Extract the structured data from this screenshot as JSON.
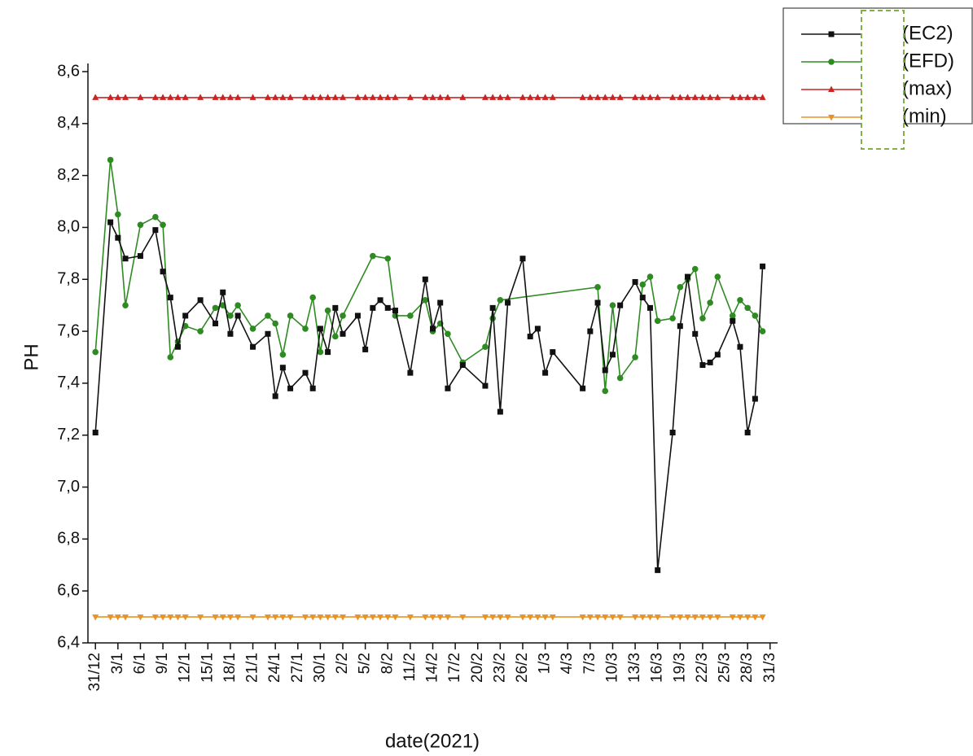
{
  "chart_data": {
    "type": "line",
    "xlabel": "date(2021)",
    "ylabel": "PH",
    "xlim": [
      -1,
      91
    ],
    "ylim": [
      6.4,
      8.6
    ],
    "xticks": [
      {
        "value": 0,
        "label": "31/12"
      },
      {
        "value": 3,
        "label": "3/1"
      },
      {
        "value": 6,
        "label": "6/1"
      },
      {
        "value": 9,
        "label": "9/1"
      },
      {
        "value": 12,
        "label": "12/1"
      },
      {
        "value": 15,
        "label": "15/1"
      },
      {
        "value": 18,
        "label": "18/1"
      },
      {
        "value": 21,
        "label": "21/1"
      },
      {
        "value": 24,
        "label": "24/1"
      },
      {
        "value": 27,
        "label": "27/1"
      },
      {
        "value": 30,
        "label": "30/1"
      },
      {
        "value": 33,
        "label": "2/2"
      },
      {
        "value": 36,
        "label": "5/2"
      },
      {
        "value": 39,
        "label": "8/2"
      },
      {
        "value": 42,
        "label": "11/2"
      },
      {
        "value": 45,
        "label": "14/2"
      },
      {
        "value": 48,
        "label": "17/2"
      },
      {
        "value": 51,
        "label": "20/2"
      },
      {
        "value": 54,
        "label": "23/2"
      },
      {
        "value": 57,
        "label": "26/2"
      },
      {
        "value": 60,
        "label": "1/3"
      },
      {
        "value": 63,
        "label": "4/3"
      },
      {
        "value": 66,
        "label": "7/3"
      },
      {
        "value": 69,
        "label": "10/3"
      },
      {
        "value": 72,
        "label": "13/3"
      },
      {
        "value": 75,
        "label": "16/3"
      },
      {
        "value": 78,
        "label": "19/3"
      },
      {
        "value": 81,
        "label": "22/3"
      },
      {
        "value": 84,
        "label": "25/3"
      },
      {
        "value": 87,
        "label": "28/3"
      },
      {
        "value": 90,
        "label": "31/3"
      }
    ],
    "yticks": [
      {
        "value": 6.4,
        "label": "6,4"
      },
      {
        "value": 6.6,
        "label": "6,6"
      },
      {
        "value": 6.8,
        "label": "6,8"
      },
      {
        "value": 7.0,
        "label": "7,0"
      },
      {
        "value": 7.2,
        "label": "7,2"
      },
      {
        "value": 7.4,
        "label": "7,4"
      },
      {
        "value": 7.6,
        "label": "7,6"
      },
      {
        "value": 7.8,
        "label": "7,8"
      },
      {
        "value": 8.0,
        "label": "8,0"
      },
      {
        "value": 8.2,
        "label": "8,2"
      },
      {
        "value": 8.4,
        "label": "8,4"
      },
      {
        "value": 8.6,
        "label": "8,6"
      }
    ],
    "legend": "upper right",
    "series": [
      {
        "name": "(EC2)",
        "color": "#111111",
        "marker": "square",
        "x": [
          0,
          2,
          3,
          4,
          6,
          8,
          9,
          10,
          11,
          12,
          14,
          16,
          17,
          18,
          19,
          21,
          23,
          24,
          25,
          26,
          28,
          29,
          30,
          31,
          32,
          33,
          35,
          36,
          37,
          38,
          39,
          40,
          42,
          44,
          45,
          46,
          47,
          49,
          52,
          53,
          54,
          55,
          57,
          58,
          59,
          60,
          61,
          65,
          66,
          67,
          68,
          69,
          70,
          72,
          73,
          74,
          75,
          77,
          78,
          79,
          80,
          81,
          82,
          83,
          85,
          86,
          87,
          88,
          89
        ],
        "values": [
          7.21,
          8.02,
          7.96,
          7.88,
          7.89,
          7.99,
          7.83,
          7.73,
          7.54,
          7.66,
          7.72,
          7.63,
          7.75,
          7.59,
          7.66,
          7.54,
          7.59,
          7.35,
          7.46,
          7.38,
          7.44,
          7.38,
          7.61,
          7.52,
          7.69,
          7.59,
          7.66,
          7.53,
          7.69,
          7.72,
          7.69,
          7.68,
          7.44,
          7.8,
          7.61,
          7.71,
          7.38,
          7.47,
          7.39,
          7.69,
          7.29,
          7.71,
          7.88,
          7.58,
          7.61,
          7.44,
          7.52,
          7.38,
          7.6,
          7.71,
          7.45,
          7.51,
          7.7,
          7.79,
          7.73,
          7.69,
          6.68,
          7.21,
          7.62,
          7.81,
          7.59,
          7.47,
          7.48,
          7.51,
          7.64,
          7.54,
          7.21,
          7.34,
          7.85
        ]
      },
      {
        "name": "(EFD)",
        "color": "#2e8b22",
        "marker": "circle",
        "x": [
          0,
          2,
          3,
          4,
          6,
          8,
          9,
          10,
          11,
          12,
          14,
          16,
          17,
          18,
          19,
          21,
          23,
          24,
          25,
          26,
          28,
          29,
          30,
          31,
          32,
          33,
          37,
          39,
          40,
          42,
          44,
          45,
          46,
          47,
          49,
          52,
          53,
          54,
          67,
          68,
          69,
          70,
          72,
          73,
          74,
          75,
          77,
          78,
          79,
          80,
          81,
          82,
          83,
          85,
          86,
          87,
          88,
          89
        ],
        "values": [
          7.52,
          8.26,
          8.05,
          7.7,
          8.01,
          8.04,
          8.01,
          7.5,
          7.56,
          7.62,
          7.6,
          7.69,
          7.7,
          7.66,
          7.7,
          7.61,
          7.66,
          7.63,
          7.51,
          7.66,
          7.61,
          7.73,
          7.52,
          7.68,
          7.58,
          7.66,
          7.89,
          7.88,
          7.66,
          7.66,
          7.72,
          7.6,
          7.63,
          7.59,
          7.48,
          7.54,
          7.65,
          7.72,
          7.77,
          7.37,
          7.7,
          7.42,
          7.5,
          7.78,
          7.81,
          7.64,
          7.65,
          7.77,
          7.8,
          7.84,
          7.65,
          7.71,
          7.81,
          7.66,
          7.72,
          7.69,
          7.66,
          7.6
        ]
      },
      {
        "name": "(max)",
        "color": "#cc2222",
        "marker": "triangle-up",
        "x": [
          0,
          2,
          3,
          4,
          6,
          8,
          9,
          10,
          11,
          12,
          14,
          16,
          17,
          18,
          19,
          21,
          23,
          24,
          25,
          26,
          28,
          29,
          30,
          31,
          32,
          33,
          35,
          36,
          37,
          38,
          39,
          40,
          42,
          44,
          45,
          46,
          47,
          49,
          52,
          53,
          54,
          55,
          57,
          58,
          59,
          60,
          61,
          65,
          66,
          67,
          68,
          69,
          70,
          72,
          73,
          74,
          75,
          77,
          78,
          79,
          80,
          81,
          82,
          83,
          85,
          86,
          87,
          88,
          89
        ],
        "values": [
          8.5,
          8.5,
          8.5,
          8.5,
          8.5,
          8.5,
          8.5,
          8.5,
          8.5,
          8.5,
          8.5,
          8.5,
          8.5,
          8.5,
          8.5,
          8.5,
          8.5,
          8.5,
          8.5,
          8.5,
          8.5,
          8.5,
          8.5,
          8.5,
          8.5,
          8.5,
          8.5,
          8.5,
          8.5,
          8.5,
          8.5,
          8.5,
          8.5,
          8.5,
          8.5,
          8.5,
          8.5,
          8.5,
          8.5,
          8.5,
          8.5,
          8.5,
          8.5,
          8.5,
          8.5,
          8.5,
          8.5,
          8.5,
          8.5,
          8.5,
          8.5,
          8.5,
          8.5,
          8.5,
          8.5,
          8.5,
          8.5,
          8.5,
          8.5,
          8.5,
          8.5,
          8.5,
          8.5,
          8.5,
          8.5,
          8.5,
          8.5,
          8.5,
          8.5
        ]
      },
      {
        "name": "(min)",
        "color": "#e8922a",
        "marker": "triangle-down",
        "x": [
          0,
          2,
          3,
          4,
          6,
          8,
          9,
          10,
          11,
          12,
          14,
          16,
          17,
          18,
          19,
          21,
          23,
          24,
          25,
          26,
          28,
          29,
          30,
          31,
          32,
          33,
          35,
          36,
          37,
          38,
          39,
          40,
          42,
          44,
          45,
          46,
          47,
          49,
          52,
          53,
          54,
          55,
          57,
          58,
          59,
          60,
          61,
          65,
          66,
          67,
          68,
          69,
          70,
          72,
          73,
          74,
          75,
          77,
          78,
          79,
          80,
          81,
          82,
          83,
          85,
          86,
          87,
          88,
          89
        ],
        "values": [
          6.5,
          6.5,
          6.5,
          6.5,
          6.5,
          6.5,
          6.5,
          6.5,
          6.5,
          6.5,
          6.5,
          6.5,
          6.5,
          6.5,
          6.5,
          6.5,
          6.5,
          6.5,
          6.5,
          6.5,
          6.5,
          6.5,
          6.5,
          6.5,
          6.5,
          6.5,
          6.5,
          6.5,
          6.5,
          6.5,
          6.5,
          6.5,
          6.5,
          6.5,
          6.5,
          6.5,
          6.5,
          6.5,
          6.5,
          6.5,
          6.5,
          6.5,
          6.5,
          6.5,
          6.5,
          6.5,
          6.5,
          6.5,
          6.5,
          6.5,
          6.5,
          6.5,
          6.5,
          6.5,
          6.5,
          6.5,
          6.5,
          6.5,
          6.5,
          6.5,
          6.5,
          6.5,
          6.5,
          6.5,
          6.5,
          6.5,
          6.5,
          6.5,
          6.5
        ]
      }
    ]
  }
}
